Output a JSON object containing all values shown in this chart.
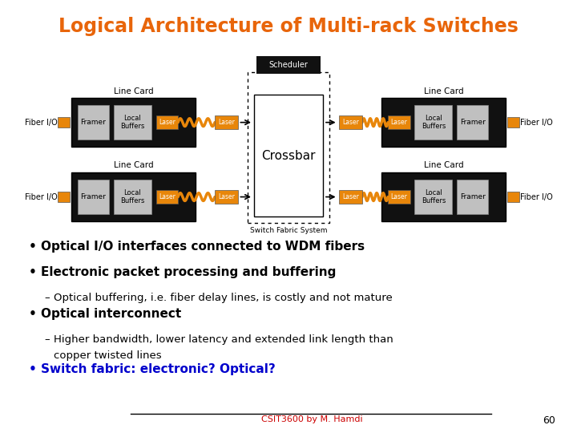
{
  "title": "Logical Architecture of Multi-rack Switches",
  "title_color": "#e8650a",
  "bg_color": "#ffffff",
  "bullet_points": [
    {
      "text": "Optical I/O interfaces connected to WDM fibers",
      "level": 0
    },
    {
      "text": "Electronic packet processing and buffering",
      "level": 0
    },
    {
      "text": "Optical buffering, i.e. fiber delay lines, is costly and not mature",
      "level": 1
    },
    {
      "text": "Optical interconnect",
      "level": 0
    },
    {
      "text": "Higher bandwidth, lower latency and extended link length than\ncopper twisted lines",
      "level": 1
    },
    {
      "text": "Switch fabric: electronic? Optical?",
      "level": 0,
      "color": "#0000cc"
    }
  ],
  "black_box_color": "#111111",
  "gray_box_color": "#c0c0c0",
  "orange_box_color": "#e8860a",
  "crossbar_label": "Crossbar",
  "scheduler_label": "Scheduler",
  "line_card_label": "Line Card",
  "switch_fabric_label": "Switch Fabric System",
  "fiber_io_label": "Fiber I/O",
  "framer_label": "Framer",
  "local_buffers_label": "Local\nBuffers",
  "laser_label": "Laser",
  "footer_text": "CSIT3600 by M. Hamdi",
  "page_num": "60"
}
